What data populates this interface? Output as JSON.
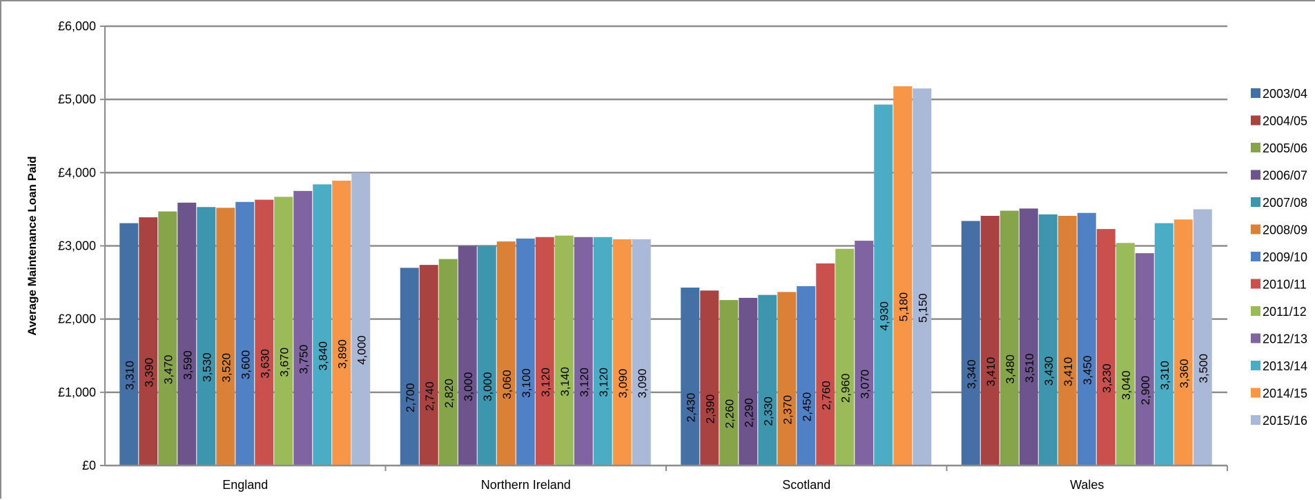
{
  "chart_data": {
    "type": "bar",
    "title": "",
    "xlabel": "",
    "ylabel": "Average Maintenance  Loan Paid",
    "ylim": [
      0,
      6000
    ],
    "yticks": [
      "£0",
      "£1,000",
      "£2,000",
      "£3,000",
      "£4,000",
      "£5,000",
      "£6,000"
    ],
    "grid": true,
    "legend_position": "right",
    "categories": [
      "England",
      "Northern Ireland",
      "Scotland",
      "Wales"
    ],
    "series": [
      {
        "name": "2003/04",
        "color": "#4470A6",
        "values": [
          3310,
          2700,
          2430,
          3340
        ],
        "labels": [
          "3,310",
          "2,700",
          "2,430",
          "3,340"
        ]
      },
      {
        "name": "2004/05",
        "color": "#A94341",
        "values": [
          3390,
          2740,
          2390,
          3410
        ],
        "labels": [
          "3,390",
          "2,740",
          "2,390",
          "3,410"
        ]
      },
      {
        "name": "2005/06",
        "color": "#86A44A",
        "values": [
          3470,
          2820,
          2260,
          3480
        ],
        "labels": [
          "3,470",
          "2,820",
          "2,260",
          "3,480"
        ]
      },
      {
        "name": "2006/07",
        "color": "#6E548D",
        "values": [
          3590,
          3000,
          2290,
          3510
        ],
        "labels": [
          "3,590",
          "3,000",
          "2,290",
          "3,510"
        ]
      },
      {
        "name": "2007/08",
        "color": "#3D96AD",
        "values": [
          3530,
          3000,
          2330,
          3430
        ],
        "labels": [
          "3,530",
          "3,000",
          "2,330",
          "3,430"
        ]
      },
      {
        "name": "2008/09",
        "color": "#DA8137",
        "values": [
          3520,
          3060,
          2370,
          3410
        ],
        "labels": [
          "3,520",
          "3,060",
          "2,370",
          "3,410"
        ]
      },
      {
        "name": "2009/10",
        "color": "#4F81C4",
        "values": [
          3600,
          3100,
          2450,
          3450
        ],
        "labels": [
          "3,600",
          "3,100",
          "2,450",
          "3,450"
        ]
      },
      {
        "name": "2010/11",
        "color": "#C9504D",
        "values": [
          3630,
          3120,
          2760,
          3230
        ],
        "labels": [
          "3,630",
          "3,120",
          "2,760",
          "3,230"
        ]
      },
      {
        "name": "2011/12",
        "color": "#9BBB59",
        "values": [
          3670,
          3140,
          2960,
          3040
        ],
        "labels": [
          "3,670",
          "3,140",
          "2,960",
          "3,040"
        ]
      },
      {
        "name": "2012/13",
        "color": "#8064A2",
        "values": [
          3750,
          3120,
          3070,
          2900
        ],
        "labels": [
          "3,750",
          "3,120",
          "3,070",
          "2,900"
        ]
      },
      {
        "name": "2013/14",
        "color": "#4BACC6",
        "values": [
          3840,
          3120,
          4930,
          3310
        ],
        "labels": [
          "3,840",
          "3,120",
          "4,930",
          "3,310"
        ]
      },
      {
        "name": "2014/15",
        "color": "#F79646",
        "values": [
          3890,
          3090,
          5180,
          3360
        ],
        "labels": [
          "3,890",
          "3,090",
          "5,180",
          "3,360"
        ]
      },
      {
        "name": "2015/16",
        "color": "#AAB9D8",
        "values": [
          4000,
          3090,
          5150,
          3500
        ],
        "labels": [
          "4,000",
          "3,090",
          "5,150",
          "3,500"
        ]
      }
    ]
  }
}
